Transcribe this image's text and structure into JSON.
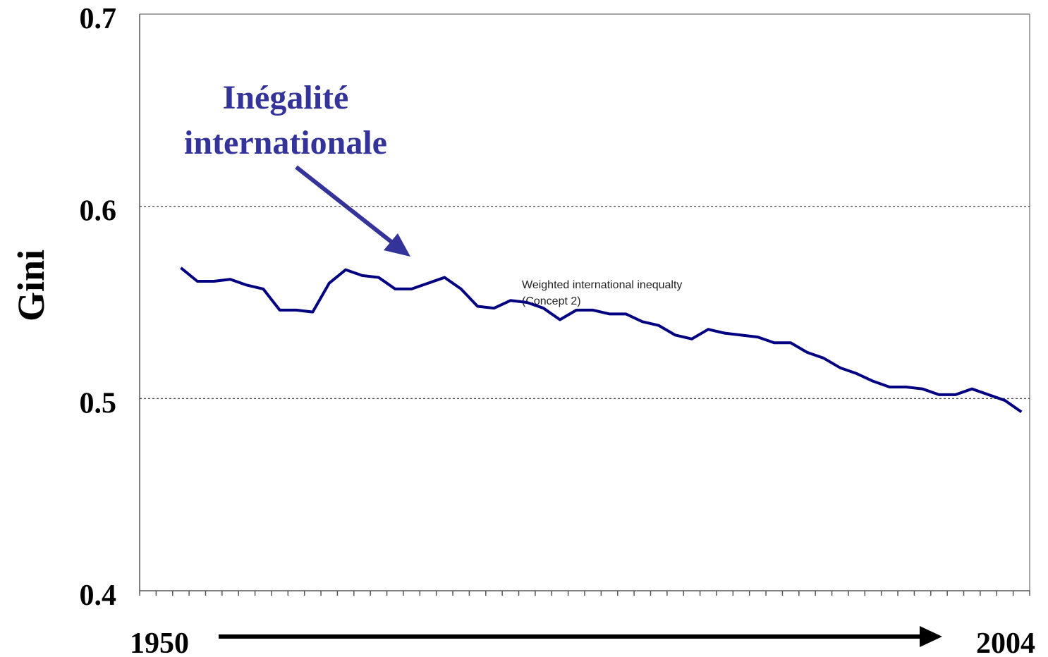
{
  "chart_data": {
    "type": "line",
    "ylabel": "Gini",
    "annotations": [
      "Inégalité",
      "internationale",
      "Weighted international inequalty",
      "(Concept 2)",
      "1950",
      "2004"
    ],
    "x": [
      1952,
      1953,
      1954,
      1955,
      1956,
      1957,
      1958,
      1959,
      1960,
      1961,
      1962,
      1963,
      1964,
      1965,
      1966,
      1967,
      1968,
      1969,
      1970,
      1971,
      1972,
      1973,
      1974,
      1975,
      1976,
      1977,
      1978,
      1979,
      1980,
      1981,
      1982,
      1983,
      1984,
      1985,
      1986,
      1987,
      1988,
      1989,
      1990,
      1991,
      1992,
      1993,
      1994,
      1995,
      1996,
      1997,
      1998,
      1999,
      2000,
      2001,
      2002,
      2003
    ],
    "series": [
      {
        "name": "Weighted international inequalty",
        "color": "#000080",
        "values": [
          0.568,
          0.561,
          0.561,
          0.562,
          0.559,
          0.557,
          0.546,
          0.546,
          0.545,
          0.56,
          0.567,
          0.564,
          0.563,
          0.557,
          0.557,
          0.56,
          0.563,
          0.557,
          0.548,
          0.547,
          0.551,
          0.55,
          0.547,
          0.541,
          0.546,
          0.546,
          0.544,
          0.544,
          0.54,
          0.538,
          0.533,
          0.531,
          0.536,
          0.534,
          0.533,
          0.532,
          0.529,
          0.529,
          0.524,
          0.521,
          0.516,
          0.513,
          0.509,
          0.506,
          0.506,
          0.505,
          0.502,
          0.502,
          0.505,
          0.502,
          0.499,
          0.493
        ]
      }
    ],
    "xlim": [
      1949.5,
      2003.5
    ],
    "xticks": [
      1949.5,
      1950.5,
      1951.5,
      1952.5,
      1953.5,
      1954.5,
      1955.5,
      1956.5,
      1957.5,
      1958.5,
      1959.5,
      1960.5,
      1961.5,
      1962.5,
      1963.5,
      1964.5,
      1965.5,
      1966.5,
      1967.5,
      1968.5,
      1969.5,
      1970.5,
      1971.5,
      1972.5,
      1973.5,
      1974.5,
      1975.5,
      1976.5,
      1977.5,
      1978.5,
      1979.5,
      1980.5,
      1981.5,
      1982.5,
      1983.5,
      1984.5,
      1985.5,
      1986.5,
      1987.5,
      1988.5,
      1989.5,
      1990.5,
      1991.5,
      1992.5,
      1993.5,
      1994.5,
      1995.5,
      1996.5,
      1997.5,
      1998.5,
      1999.5,
      2000.5,
      2001.5,
      2002.5,
      2003.5
    ],
    "ylim": [
      0.4,
      0.7
    ],
    "yticks": [
      0.4,
      0.5,
      0.6,
      0.7
    ],
    "grid": true
  }
}
